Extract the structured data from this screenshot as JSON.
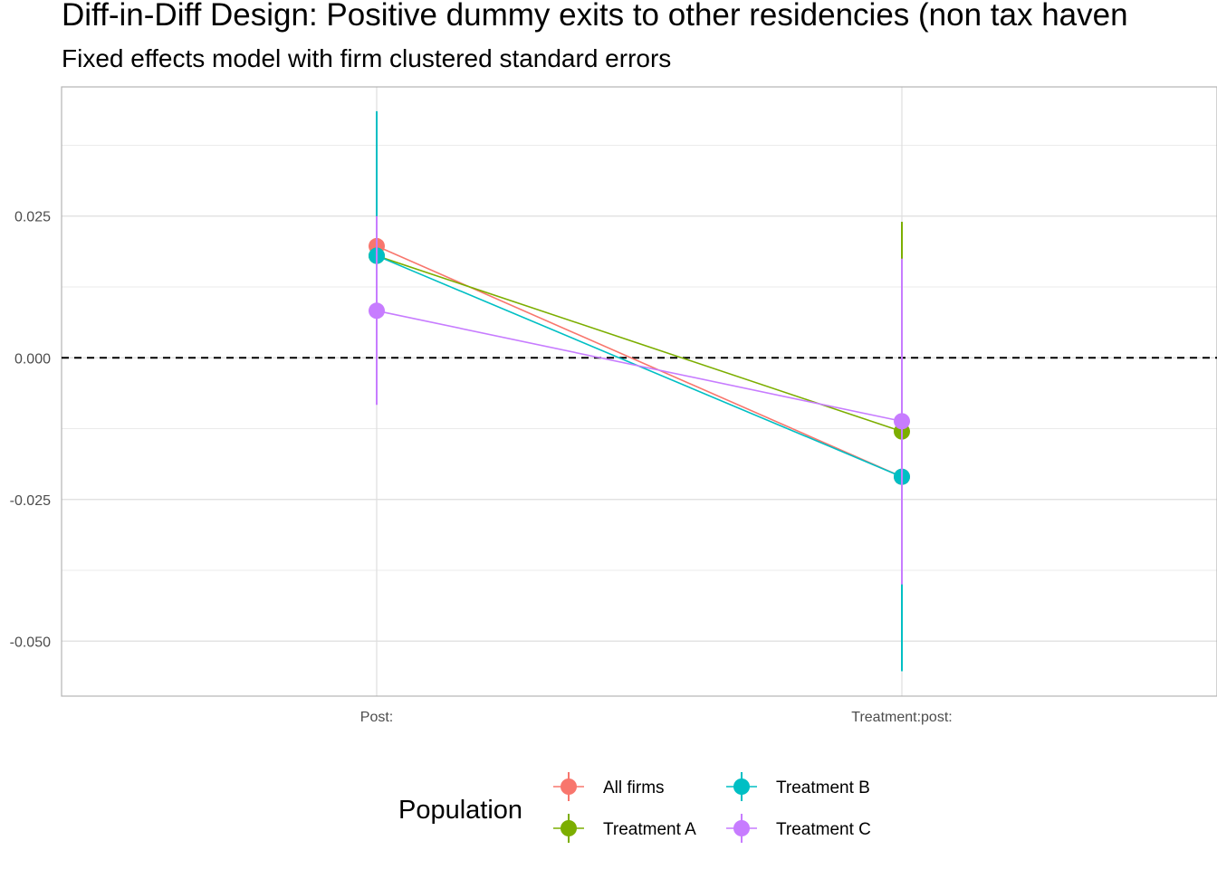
{
  "chart_data": {
    "type": "line",
    "title": "Diff-in-Diff Design: Positive dummy exits to other residencies (non tax haven",
    "subtitle": "Fixed effects model with firm clustered standard errors",
    "xlabel": "",
    "ylabel": "",
    "categories": [
      "Post:",
      "Treatment:post:"
    ],
    "ylim": [
      -0.0597,
      0.0478
    ],
    "yticks": [
      -0.05,
      -0.025,
      0.0,
      0.025
    ],
    "ytick_labels": [
      "-0.050",
      "-0.025",
      "0.000",
      "0.025"
    ],
    "reference_line": {
      "y": 0,
      "style": "dashed",
      "color": "#000000"
    },
    "grid": true,
    "legend": {
      "title": "Population",
      "position": "bottom",
      "columns": 2
    },
    "series": [
      {
        "name": "All firms",
        "color": "#F8766D",
        "values": [
          0.0197,
          -0.021
        ],
        "ci_low": [
          0.014,
          -0.028
        ],
        "ci_high": [
          0.025,
          -0.014
        ]
      },
      {
        "name": "Treatment A",
        "color": "#7CAE00",
        "values": [
          0.018,
          -0.013
        ],
        "ci_low": [
          0.01,
          -0.04
        ],
        "ci_high": [
          0.026,
          0.024
        ]
      },
      {
        "name": "Treatment B",
        "color": "#00BFC4",
        "values": [
          0.018,
          -0.021
        ],
        "ci_low": [
          0.0,
          -0.0553
        ],
        "ci_high": [
          0.0435,
          0.01
        ]
      },
      {
        "name": "Treatment C",
        "color": "#C77CFF",
        "values": [
          0.0083,
          -0.0112
        ],
        "ci_low": [
          -0.0083,
          -0.04
        ],
        "ci_high": [
          0.025,
          0.0175
        ]
      }
    ]
  }
}
